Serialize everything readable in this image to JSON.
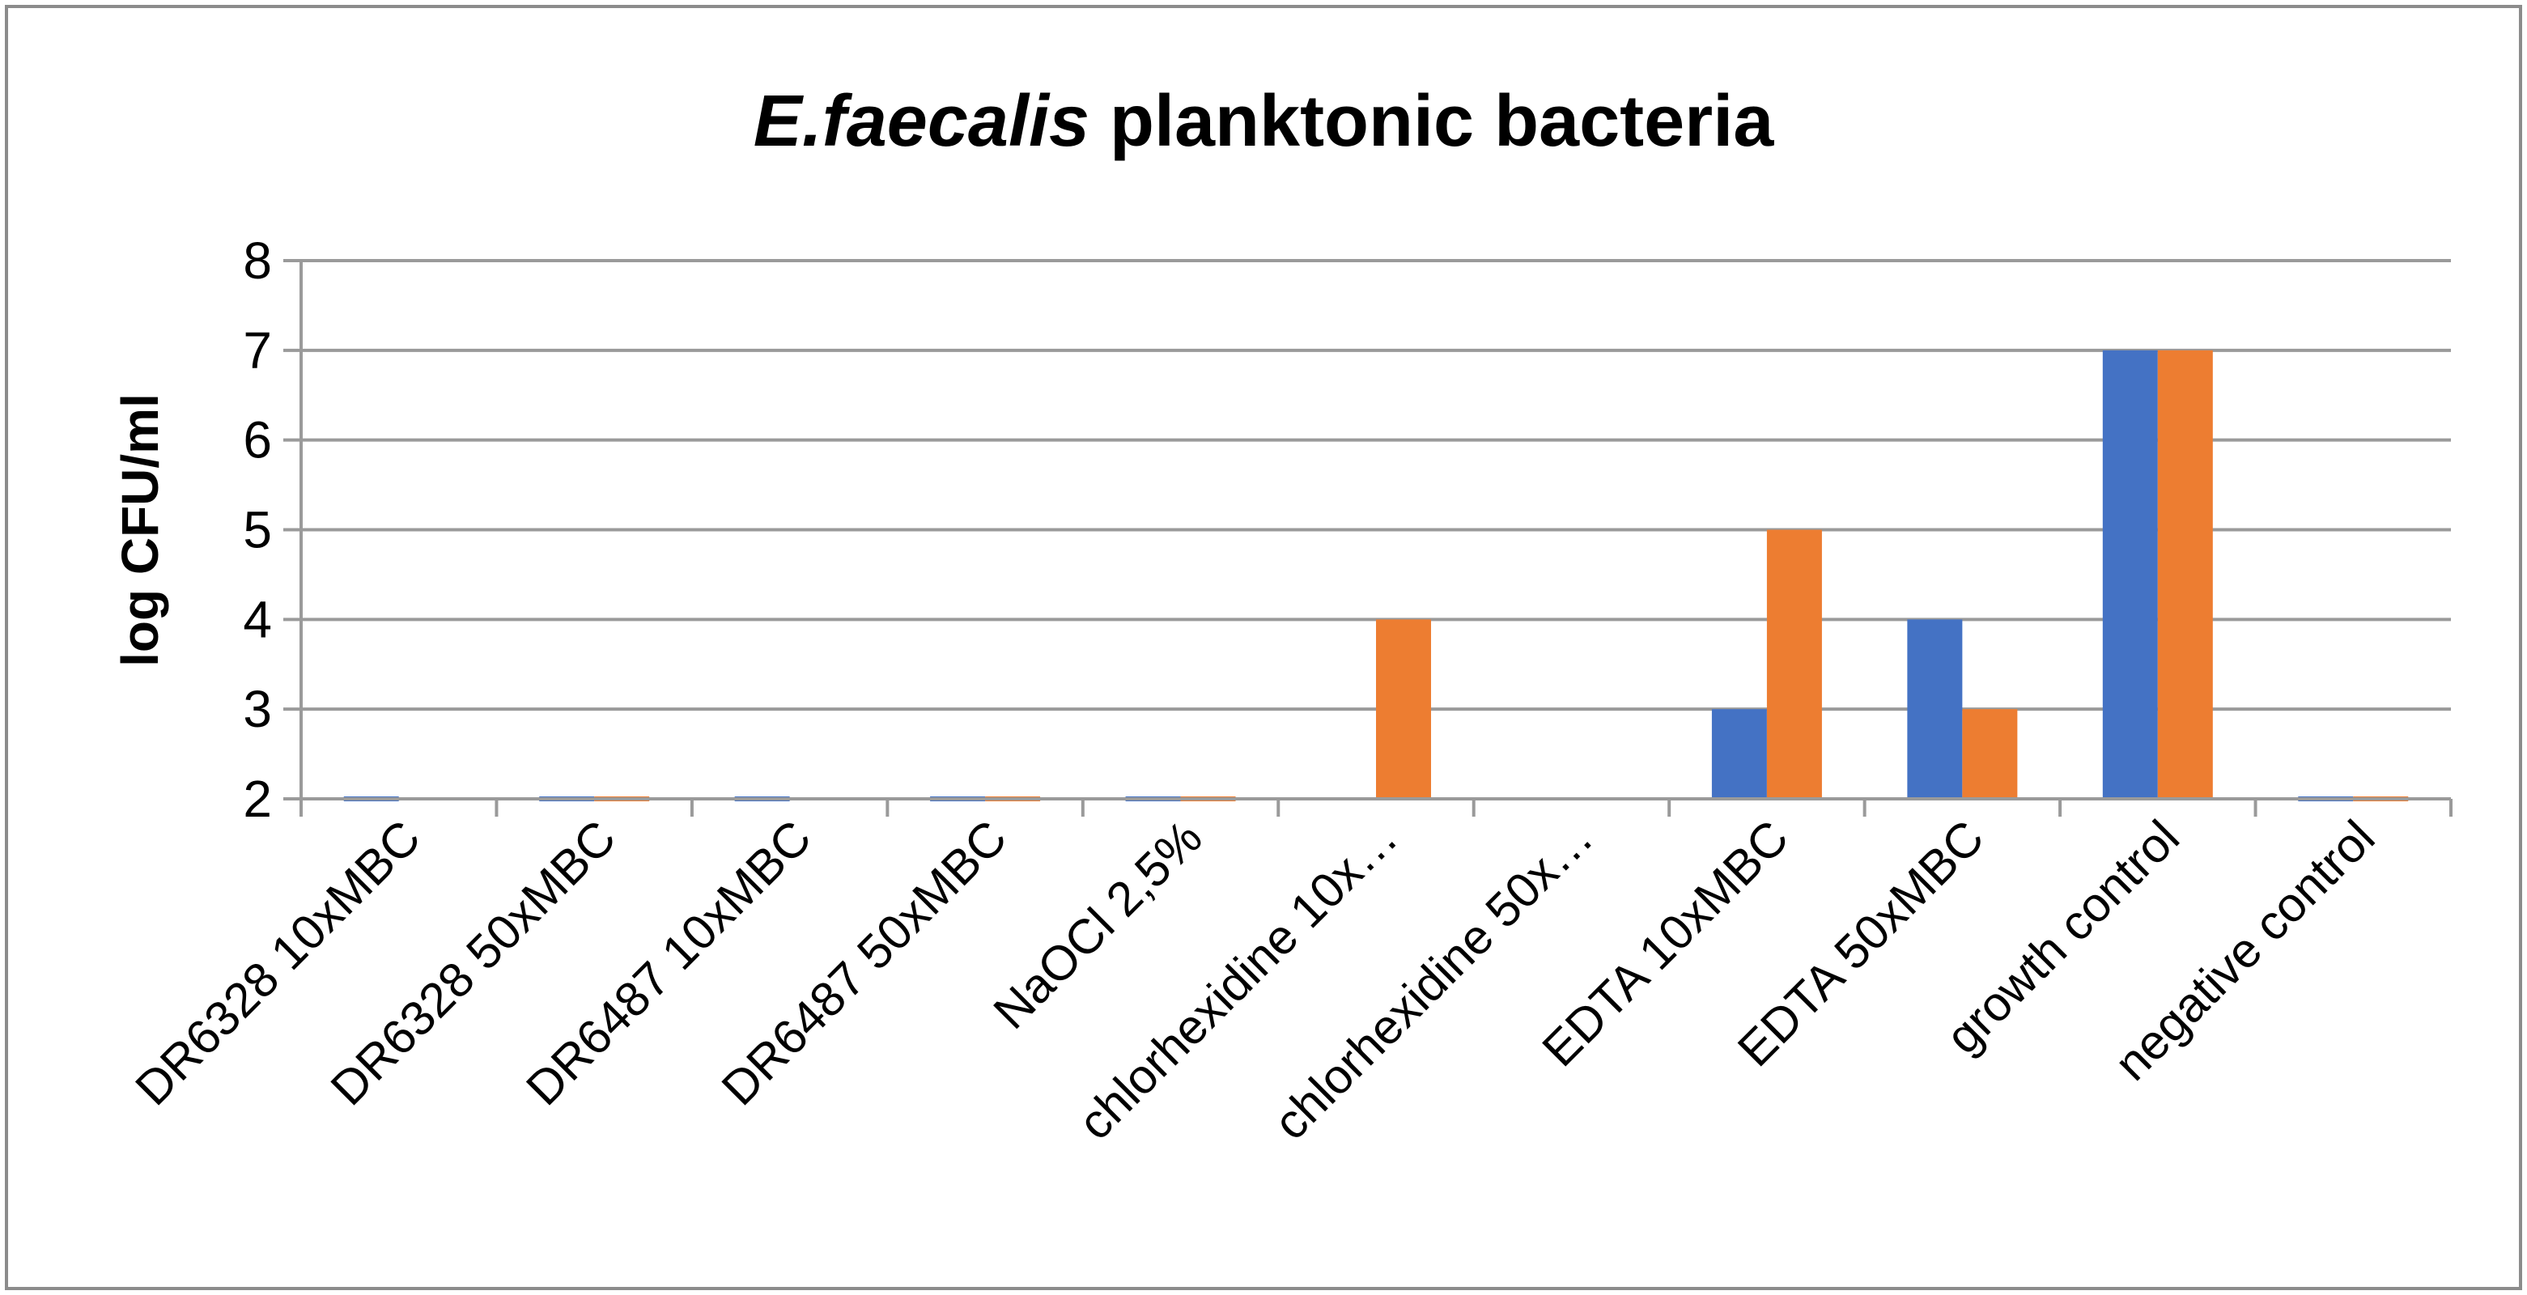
{
  "chart_data": {
    "type": "bar",
    "title_italic": "E.faecalis",
    "title_rest": " planktonic bacteria",
    "xlabel": "",
    "ylabel": "log CFU/ml",
    "ylim": [
      2,
      8
    ],
    "yticks": [
      "2",
      "3",
      "4",
      "5",
      "6",
      "7",
      "8"
    ],
    "grid": true,
    "legend": "none",
    "categories": [
      "DR6328 10xMBC",
      "DR6328 50xMBC",
      "DR6487 10xMBC",
      "DR6487 50xMBC",
      "NaOCl 2,5%",
      "chlorhexidine 10x…",
      "chlorhexidine 50x…",
      "EDTA 10xMBC",
      "EDTA 50xMBC",
      "growth control",
      "negative control"
    ],
    "series": [
      {
        "color": "#4472c4",
        "values": [
          2,
          2,
          2,
          2,
          2,
          null,
          null,
          3,
          4,
          7,
          2
        ]
      },
      {
        "color": "#ed7d31",
        "values": [
          null,
          2,
          null,
          2,
          2,
          4,
          null,
          5,
          3,
          7,
          2
        ]
      }
    ]
  }
}
